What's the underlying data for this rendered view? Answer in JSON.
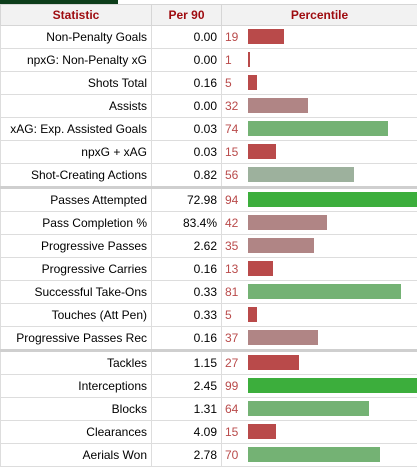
{
  "colors": {
    "header_text": "#9e0b0f",
    "top_accent": "#0c3d1a",
    "low": "#b94a4a",
    "mid_low": "#b08585",
    "mid_high": "#9db19d",
    "high": "#74b274",
    "top": "#3cae3c"
  },
  "chart_data": {
    "type": "table",
    "columns": [
      "Statistic",
      "Per 90",
      "Percentile"
    ],
    "percentile_range": [
      0,
      100
    ],
    "rows": [
      {
        "stat": "Non-Penalty Goals",
        "per90": "0.00",
        "pct": 19,
        "group": 1
      },
      {
        "stat": "npxG: Non-Penalty xG",
        "per90": "0.00",
        "pct": 1,
        "group": 1
      },
      {
        "stat": "Shots Total",
        "per90": "0.16",
        "pct": 5,
        "group": 1
      },
      {
        "stat": "Assists",
        "per90": "0.00",
        "pct": 32,
        "group": 1
      },
      {
        "stat": "xAG: Exp. Assisted Goals",
        "per90": "0.03",
        "pct": 74,
        "group": 1
      },
      {
        "stat": "npxG + xAG",
        "per90": "0.03",
        "pct": 15,
        "group": 1
      },
      {
        "stat": "Shot-Creating Actions",
        "per90": "0.82",
        "pct": 56,
        "group": 1
      },
      {
        "stat": "Passes Attempted",
        "per90": "72.98",
        "pct": 94,
        "group": 2
      },
      {
        "stat": "Pass Completion %",
        "per90": "83.4%",
        "pct": 42,
        "group": 2
      },
      {
        "stat": "Progressive Passes",
        "per90": "2.62",
        "pct": 35,
        "group": 2
      },
      {
        "stat": "Progressive Carries",
        "per90": "0.16",
        "pct": 13,
        "group": 2
      },
      {
        "stat": "Successful Take-Ons",
        "per90": "0.33",
        "pct": 81,
        "group": 2
      },
      {
        "stat": "Touches (Att Pen)",
        "per90": "0.33",
        "pct": 5,
        "group": 2
      },
      {
        "stat": "Progressive Passes Rec",
        "per90": "0.16",
        "pct": 37,
        "group": 2
      },
      {
        "stat": "Tackles",
        "per90": "1.15",
        "pct": 27,
        "group": 3
      },
      {
        "stat": "Interceptions",
        "per90": "2.45",
        "pct": 99,
        "group": 3
      },
      {
        "stat": "Blocks",
        "per90": "1.31",
        "pct": 64,
        "group": 3
      },
      {
        "stat": "Clearances",
        "per90": "4.09",
        "pct": 15,
        "group": 3
      },
      {
        "stat": "Aerials Won",
        "per90": "2.78",
        "pct": 70,
        "group": 3
      }
    ]
  }
}
